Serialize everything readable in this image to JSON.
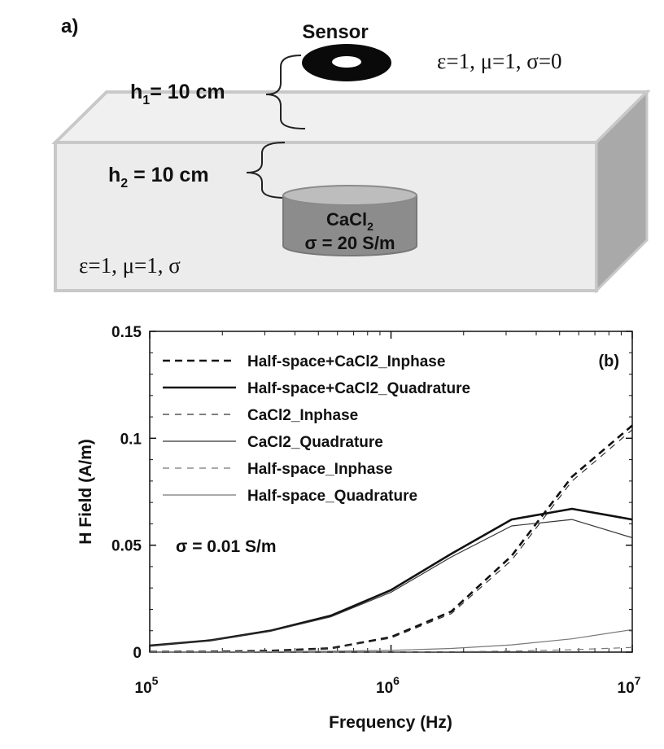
{
  "diagram": {
    "panel_label": "a)",
    "sensor_label": "Sensor",
    "air_props": "ε=1, μ=1, σ=0",
    "h1_label": "h",
    "h1_sub": "1",
    "h1_value": "= 10 cm",
    "h2_label": "h",
    "h2_sub": "2",
    "h2_value": " = 10 cm",
    "target_name": "CaCl",
    "target_sub": "2",
    "target_sigma": "σ = 20 S/m",
    "ground_props": "ε=1, μ=1, σ"
  },
  "chart_data": {
    "type": "line",
    "panel_label": "(b)",
    "annotation": "σ = 0.01 S/m",
    "xlabel": "Frequency (Hz)",
    "ylabel": "H Field (A/m)",
    "xscale": "log",
    "xlim": [
      100000,
      10000000
    ],
    "ylim": [
      0,
      0.15
    ],
    "xticks": [
      {
        "value": 100000,
        "base": "10",
        "exp": "5"
      },
      {
        "value": 1000000,
        "base": "10",
        "exp": "6"
      },
      {
        "value": 10000000,
        "base": "10",
        "exp": "7"
      }
    ],
    "yticks": [
      {
        "value": 0,
        "label": "0"
      },
      {
        "value": 0.05,
        "label": "0.05"
      },
      {
        "value": 0.1,
        "label": "0.1"
      },
      {
        "value": 0.15,
        "label": "0.15"
      }
    ],
    "legend_position": "top-left",
    "x": [
      100000,
      177800,
      316200,
      562300,
      1000000,
      1778000,
      3162000,
      5623000,
      10000000
    ],
    "series": [
      {
        "name": "Half-space+CaCl2_Inphase",
        "style": "dashed",
        "weight": "bold",
        "color": "#111111",
        "values": [
          0.0001,
          0.0002,
          0.0006,
          0.0018,
          0.007,
          0.019,
          0.045,
          0.082,
          0.106
        ]
      },
      {
        "name": "Half-space+CaCl2_Quadrature",
        "style": "solid",
        "weight": "bold",
        "color": "#111111",
        "values": [
          0.003,
          0.0055,
          0.01,
          0.017,
          0.029,
          0.046,
          0.062,
          0.067,
          0.062
        ]
      },
      {
        "name": "CaCl2_Inphase",
        "style": "dashed",
        "weight": "thin",
        "color": "#333333",
        "values": [
          0.0001,
          0.0002,
          0.0006,
          0.0017,
          0.0066,
          0.018,
          0.043,
          0.08,
          0.104
        ]
      },
      {
        "name": "CaCl2_Quadrature",
        "style": "solid",
        "weight": "thin",
        "color": "#333333",
        "values": [
          0.0029,
          0.0054,
          0.0098,
          0.0165,
          0.028,
          0.0445,
          0.059,
          0.062,
          0.0535
        ]
      },
      {
        "name": "Half-space_Inphase",
        "style": "dashed",
        "weight": "thin",
        "color": "#777777",
        "values": [
          0.0,
          0.0,
          0.0,
          0.0,
          0.0001,
          0.0002,
          0.0005,
          0.0011,
          0.0022
        ]
      },
      {
        "name": "Half-space_Quadrature",
        "style": "solid",
        "weight": "thin",
        "color": "#777777",
        "values": [
          0.0,
          0.0001,
          0.0002,
          0.0004,
          0.0008,
          0.0017,
          0.0034,
          0.0062,
          0.0105
        ]
      }
    ]
  }
}
